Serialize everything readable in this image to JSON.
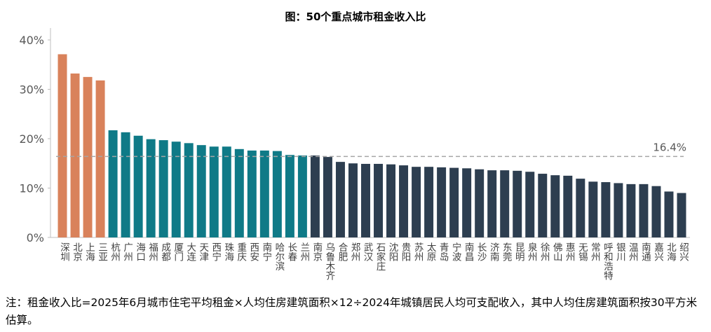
{
  "chart_data": {
    "type": "bar",
    "title": "图：50个重点城市租金收入比",
    "categories": [
      "深圳",
      "北京",
      "上海",
      "三亚",
      "杭州",
      "广州",
      "海口",
      "福州",
      "成都",
      "厦门",
      "大连",
      "天津",
      "西宁",
      "珠海",
      "重庆",
      "西安",
      "南宁",
      "哈尔滨",
      "长春",
      "兰州",
      "南京",
      "乌鲁木齐",
      "合肥",
      "郑州",
      "武汉",
      "石家庄",
      "沈阳",
      "贵阳",
      "苏州",
      "太原",
      "青岛",
      "宁波",
      "南昌",
      "长沙",
      "济南",
      "东莞",
      "昆明",
      "泉州",
      "徐州",
      "佛山",
      "惠州",
      "无锡",
      "常州",
      "呼和浩特",
      "银川",
      "温州",
      "南通",
      "嘉兴",
      "北海",
      "绍兴"
    ],
    "values": [
      37.1,
      33.2,
      32.5,
      31.8,
      21.7,
      21.3,
      20.6,
      19.9,
      19.7,
      19.4,
      19.1,
      18.7,
      18.4,
      18.4,
      17.9,
      17.6,
      17.6,
      17.5,
      16.7,
      16.6,
      16.6,
      16.3,
      15.3,
      15.0,
      14.9,
      14.9,
      14.8,
      14.6,
      14.3,
      14.3,
      14.2,
      14.1,
      14.0,
      13.8,
      13.6,
      13.6,
      13.5,
      13.3,
      12.9,
      12.6,
      12.5,
      11.9,
      11.3,
      11.2,
      11.0,
      10.8,
      10.8,
      10.4,
      9.3,
      9.0
    ],
    "colors": [
      "#d9825b",
      "#d9825b",
      "#d9825b",
      "#d9825b",
      "#0f7a87",
      "#0f7a87",
      "#0f7a87",
      "#0f7a87",
      "#0f7a87",
      "#0f7a87",
      "#0f7a87",
      "#0f7a87",
      "#0f7a87",
      "#0f7a87",
      "#0f7a87",
      "#0f7a87",
      "#0f7a87",
      "#0f7a87",
      "#0f7a87",
      "#0f7a87",
      "#2d3e50",
      "#2d3e50",
      "#2d3e50",
      "#2d3e50",
      "#2d3e50",
      "#2d3e50",
      "#2d3e50",
      "#2d3e50",
      "#2d3e50",
      "#2d3e50",
      "#2d3e50",
      "#2d3e50",
      "#2d3e50",
      "#2d3e50",
      "#2d3e50",
      "#2d3e50",
      "#2d3e50",
      "#2d3e50",
      "#2d3e50",
      "#2d3e50",
      "#2d3e50",
      "#2d3e50",
      "#2d3e50",
      "#2d3e50",
      "#2d3e50",
      "#2d3e50",
      "#2d3e50",
      "#2d3e50",
      "#2d3e50",
      "#2d3e50"
    ],
    "ylim": [
      0,
      42
    ],
    "yticks": [
      {
        "value": 0,
        "label": "0%"
      },
      {
        "value": 10,
        "label": "10%"
      },
      {
        "value": 20,
        "label": "20%"
      },
      {
        "value": 30,
        "label": "30%"
      },
      {
        "value": 40,
        "label": "40%"
      }
    ],
    "grid": false,
    "reference_line": {
      "value": 16.4,
      "label": "16.4%",
      "color": "#a6a6a6"
    },
    "note": "注：租金收入比=2025年6月城市住宅平均租金×人均住房建筑面积×12÷2024年城镇居民人均可支配收入，其中人均住房建筑面积按30平方米估算。"
  }
}
